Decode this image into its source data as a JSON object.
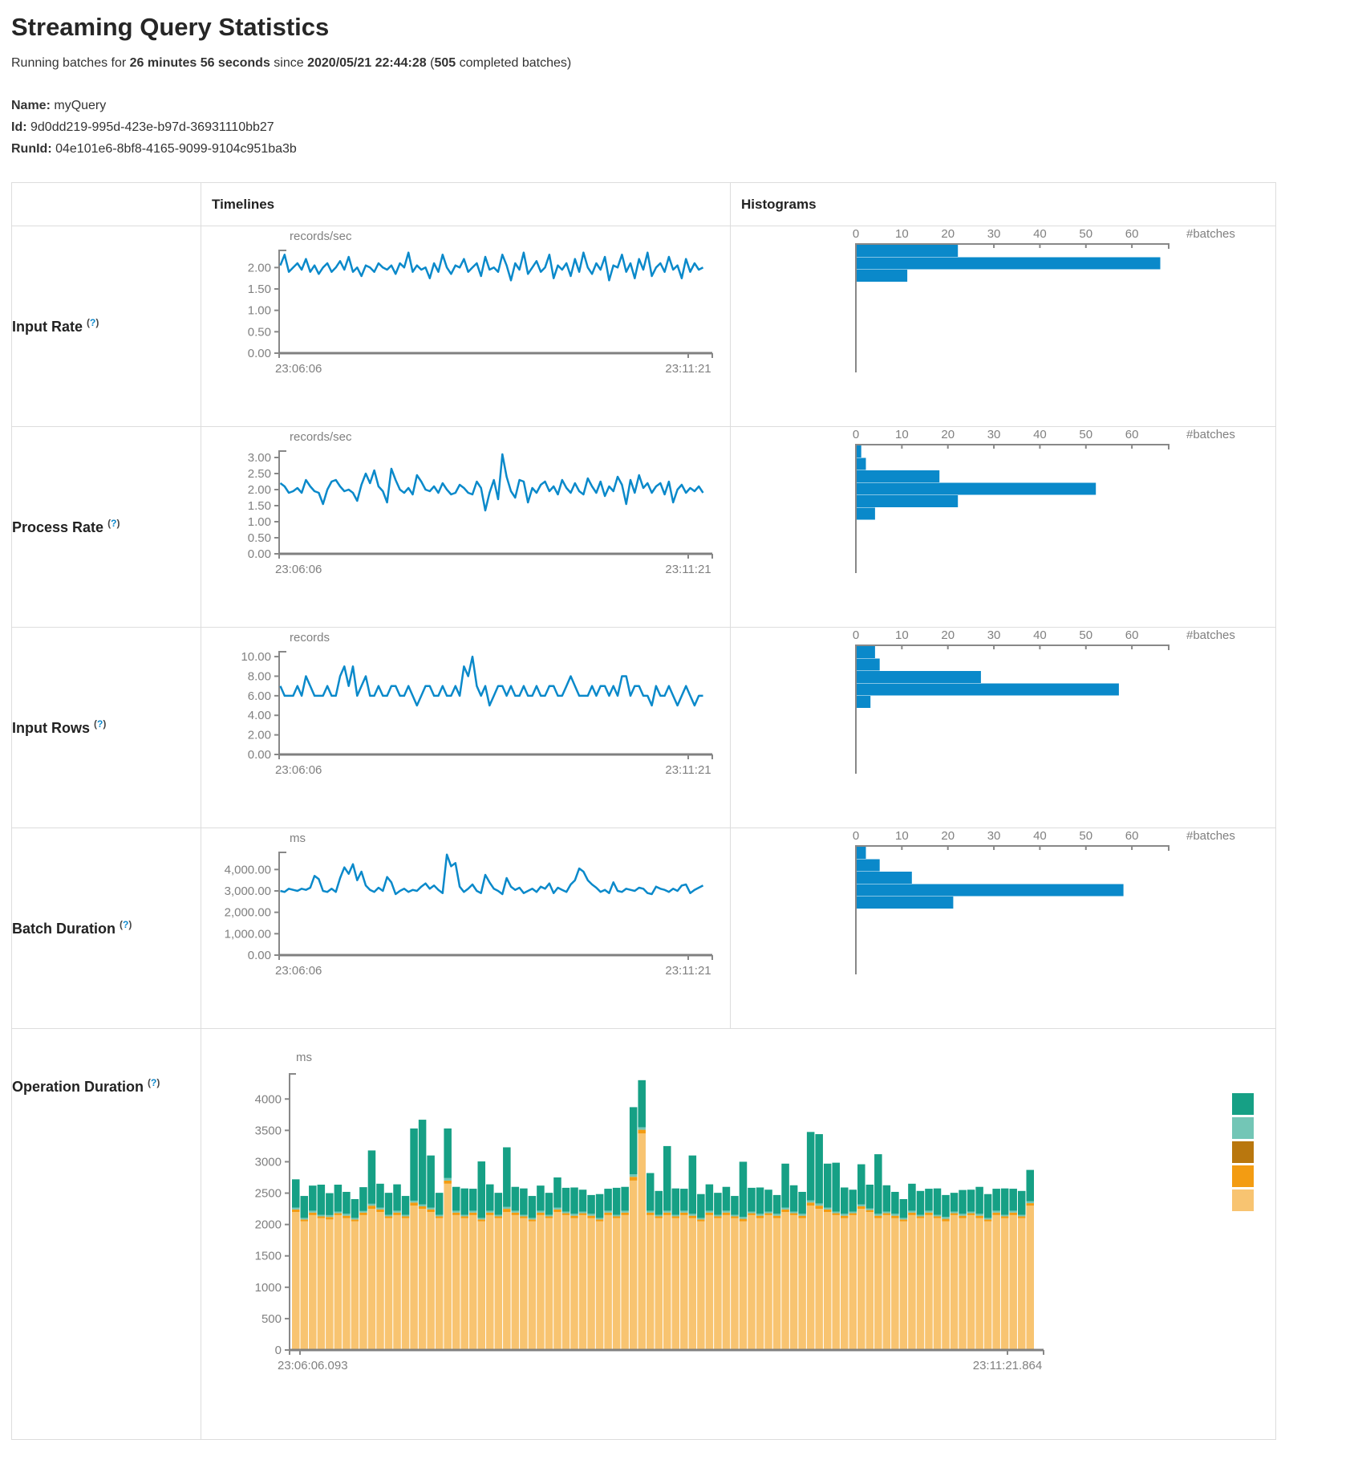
{
  "title": "Streaming Query Statistics",
  "subtitle": {
    "t1": "Running batches for ",
    "duration": "26 minutes 56 seconds",
    "t2": " since ",
    "start_time": "2020/05/21 22:44:28",
    "t3": " (",
    "batches": "505",
    "t4": " completed batches)"
  },
  "meta": {
    "name_label": "Name:",
    "name": "myQuery",
    "id_label": "Id:",
    "id": "9d0dd219-995d-423e-b97d-36931110bb27",
    "runid_label": "RunId:",
    "runid": "04e101e6-8bf8-4165-9099-9104c951ba3b"
  },
  "table": {
    "timelines_header": "Timelines",
    "histograms_header": "Histograms"
  },
  "help": {
    "open": "(",
    "q": "?",
    "close": ")"
  },
  "colors": {
    "accent_blue": "#0A89CA",
    "axis_gray": "#888888"
  },
  "hist_axis": {
    "ticks": [
      0,
      10,
      20,
      30,
      40,
      50,
      60
    ],
    "max": 68,
    "label": "#batches"
  },
  "rows": [
    {
      "label": "Input Rate",
      "unit": "records/sec",
      "x_start": "23:06:06",
      "x_end": "23:11:21",
      "y_ticks": [
        "0.00",
        "0.50",
        "1.00",
        "1.50",
        "2.00"
      ],
      "y_tick_values": [
        0,
        0.5,
        1,
        1.5,
        2
      ],
      "y_max": 2.4,
      "timeline": [
        2.05,
        2.3,
        1.9,
        2.0,
        2.1,
        1.95,
        2.2,
        1.9,
        2.05,
        1.85,
        2.0,
        2.1,
        1.9,
        2.0,
        2.15,
        1.95,
        2.25,
        1.9,
        2.0,
        1.8,
        2.05,
        2.0,
        1.9,
        2.1,
        2.0,
        1.95,
        2.05,
        1.85,
        2.1,
        2.0,
        2.35,
        1.9,
        2.05,
        1.95,
        2.0,
        1.75,
        2.1,
        1.9,
        2.3,
        2.0,
        1.85,
        2.05,
        2.0,
        2.2,
        1.9,
        2.0,
        2.1,
        1.8,
        2.25,
        1.95,
        2.0,
        1.9,
        2.3,
        2.05,
        1.7,
        2.1,
        1.95,
        2.35,
        1.85,
        2.0,
        2.15,
        1.9,
        2.0,
        2.3,
        1.75,
        2.05,
        1.95,
        2.1,
        1.8,
        2.2,
        1.9,
        2.35,
        2.0,
        1.85,
        2.1,
        1.95,
        2.25,
        1.7,
        2.05,
        2.0,
        2.3,
        1.9,
        2.1,
        1.75,
        2.2,
        1.95,
        2.35,
        1.8,
        2.0,
        2.1,
        1.9,
        2.25,
        1.95,
        2.05,
        1.75,
        2.2,
        1.9,
        2.1,
        1.95,
        2.0
      ],
      "histogram": [
        22,
        66,
        11
      ]
    },
    {
      "label": "Process Rate",
      "unit": "records/sec",
      "x_start": "23:06:06",
      "x_end": "23:11:21",
      "y_ticks": [
        "0.00",
        "0.50",
        "1.00",
        "1.50",
        "2.00",
        "2.50",
        "3.00"
      ],
      "y_tick_values": [
        0,
        0.5,
        1,
        1.5,
        2,
        2.5,
        3
      ],
      "y_max": 3.2,
      "timeline": [
        2.2,
        2.1,
        1.9,
        1.95,
        2.05,
        1.9,
        2.3,
        2.1,
        1.95,
        1.9,
        1.55,
        2.0,
        2.25,
        2.3,
        2.1,
        1.95,
        2.0,
        1.9,
        1.65,
        2.15,
        2.5,
        2.2,
        2.6,
        2.1,
        1.95,
        1.6,
        2.65,
        2.3,
        2.0,
        1.9,
        2.05,
        1.85,
        2.45,
        2.25,
        2.0,
        1.95,
        2.1,
        1.9,
        2.2,
        2.0,
        1.85,
        1.9,
        2.15,
        2.05,
        1.9,
        1.85,
        2.25,
        2.05,
        1.35,
        1.9,
        2.3,
        1.7,
        3.1,
        2.4,
        1.95,
        1.75,
        2.3,
        2.25,
        1.6,
        2.05,
        1.9,
        2.15,
        2.25,
        1.95,
        2.1,
        1.85,
        2.3,
        2.05,
        1.9,
        2.2,
        1.95,
        1.85,
        2.35,
        2.1,
        1.9,
        2.25,
        1.8,
        2.1,
        1.95,
        2.4,
        2.15,
        1.55,
        2.3,
        1.9,
        2.45,
        2.05,
        2.2,
        1.9,
        2.1,
        2.2,
        1.85,
        2.25,
        1.6,
        2.0,
        2.15,
        1.9,
        2.05,
        1.95,
        2.1,
        1.9
      ],
      "histogram": [
        1,
        2,
        18,
        52,
        22,
        4
      ]
    },
    {
      "label": "Input Rows",
      "unit": "records",
      "x_start": "23:06:06",
      "x_end": "23:11:21",
      "y_ticks": [
        "0.00",
        "2.00",
        "4.00",
        "6.00",
        "8.00",
        "10.00"
      ],
      "y_tick_values": [
        0,
        2,
        4,
        6,
        8,
        10
      ],
      "y_max": 10.5,
      "timeline": [
        7,
        6,
        6,
        6,
        7,
        6,
        8,
        7,
        6,
        6,
        6,
        7,
        6,
        6,
        8,
        9,
        7,
        9,
        6,
        7,
        8,
        6,
        6,
        7,
        6,
        6,
        7,
        7,
        6,
        6,
        7,
        6,
        5,
        6,
        7,
        7,
        6,
        6,
        7,
        6,
        6,
        7,
        6,
        9,
        8,
        10,
        7,
        6,
        7,
        5,
        6,
        7,
        7,
        6,
        7,
        6,
        6,
        7,
        6,
        6,
        7,
        6,
        6,
        7,
        7,
        6,
        6,
        7,
        8,
        7,
        6,
        6,
        6,
        7,
        6,
        7,
        7,
        6,
        7,
        6,
        8,
        8,
        6,
        7,
        7,
        6,
        6,
        5,
        7,
        6,
        6,
        7,
        6,
        5,
        6,
        7,
        6,
        5,
        6,
        6
      ],
      "histogram": [
        4,
        5,
        27,
        57,
        3
      ]
    },
    {
      "label": "Batch Duration",
      "unit": "ms",
      "x_start": "23:06:06",
      "x_end": "23:11:21",
      "y_ticks": [
        "0.00",
        "1,000.00",
        "2,000.00",
        "3,000.00",
        "4,000.00"
      ],
      "y_tick_values": [
        0,
        1000,
        2000,
        3000,
        4000
      ],
      "y_max": 4800,
      "timeline": [
        3000,
        2950,
        3100,
        3050,
        3000,
        3100,
        3050,
        3150,
        3700,
        3550,
        3000,
        2950,
        3100,
        2950,
        3600,
        4100,
        3800,
        4250,
        3500,
        3900,
        3250,
        3050,
        2950,
        3150,
        3000,
        3650,
        3400,
        2850,
        3000,
        3100,
        2950,
        3050,
        3000,
        3200,
        3350,
        3100,
        3250,
        3050,
        2900,
        4700,
        4150,
        4300,
        3200,
        2950,
        3100,
        3300,
        3000,
        2900,
        3750,
        3400,
        3100,
        3000,
        2850,
        3600,
        3200,
        3050,
        3150,
        2900,
        3000,
        3100,
        2950,
        3200,
        3100,
        3350,
        2900,
        3150,
        3050,
        2950,
        3300,
        3500,
        4050,
        3900,
        3500,
        3300,
        3150,
        2950,
        3050,
        2900,
        3400,
        3000,
        2950,
        3100,
        3050,
        3000,
        3150,
        3100,
        2900,
        2850,
        3200,
        3100,
        3050,
        2950,
        3100,
        3000,
        3250,
        3300,
        2900,
        3050,
        3150,
        3250
      ],
      "histogram": [
        2,
        5,
        12,
        58,
        21
      ]
    }
  ],
  "operation": {
    "label": "Operation Duration",
    "unit": "ms",
    "x_start": "23:06:06.093",
    "x_end": "23:11:21.864",
    "y_ticks": [
      "0",
      "500",
      "1000",
      "1500",
      "2000",
      "2500",
      "3000",
      "3500",
      "4000"
    ],
    "y_tick_values": [
      0,
      500,
      1000,
      1500,
      2000,
      2500,
      3000,
      3500,
      4000
    ],
    "y_max": 4400,
    "stack_colors": [
      "#F8C471",
      "#F39C12",
      "#73C6B6",
      "#16A085"
    ],
    "legend_colors": [
      "#16A085",
      "#73C6B6",
      "#B9770E",
      "#F39C12",
      "#F8C471"
    ],
    "bars": [
      [
        2200,
        40,
        30,
        450
      ],
      [
        2050,
        30,
        25,
        350
      ],
      [
        2150,
        40,
        30,
        400
      ],
      [
        2100,
        30,
        25,
        480
      ],
      [
        2080,
        40,
        30,
        350
      ],
      [
        2150,
        30,
        25,
        430
      ],
      [
        2100,
        40,
        30,
        350
      ],
      [
        2050,
        30,
        25,
        300
      ],
      [
        2150,
        40,
        25,
        380
      ],
      [
        2250,
        50,
        30,
        850
      ],
      [
        2200,
        40,
        30,
        380
      ],
      [
        2100,
        30,
        25,
        350
      ],
      [
        2150,
        40,
        30,
        420
      ],
      [
        2100,
        30,
        25,
        300
      ],
      [
        2300,
        50,
        30,
        1150
      ],
      [
        2250,
        40,
        30,
        1350
      ],
      [
        2200,
        40,
        30,
        830
      ],
      [
        2100,
        30,
        25,
        350
      ],
      [
        2650,
        50,
        40,
        790
      ],
      [
        2150,
        40,
        30,
        380
      ],
      [
        2100,
        30,
        25,
        420
      ],
      [
        2150,
        40,
        30,
        350
      ],
      [
        2050,
        30,
        25,
        900
      ],
      [
        2150,
        40,
        30,
        420
      ],
      [
        2100,
        30,
        25,
        350
      ],
      [
        2200,
        50,
        30,
        950
      ],
      [
        2150,
        40,
        30,
        380
      ],
      [
        2100,
        30,
        25,
        420
      ],
      [
        2050,
        30,
        25,
        350
      ],
      [
        2150,
        40,
        30,
        400
      ],
      [
        2100,
        30,
        25,
        350
      ],
      [
        2200,
        40,
        30,
        480
      ],
      [
        2150,
        30,
        25,
        380
      ],
      [
        2100,
        40,
        30,
        420
      ],
      [
        2150,
        30,
        25,
        350
      ],
      [
        2100,
        40,
        30,
        300
      ],
      [
        2050,
        30,
        25,
        380
      ],
      [
        2150,
        40,
        30,
        350
      ],
      [
        2100,
        30,
        25,
        430
      ],
      [
        2150,
        40,
        30,
        380
      ],
      [
        2700,
        60,
        40,
        1070
      ],
      [
        3450,
        60,
        40,
        750
      ],
      [
        2150,
        40,
        30,
        600
      ],
      [
        2100,
        30,
        25,
        380
      ],
      [
        2150,
        40,
        30,
        1030
      ],
      [
        2100,
        30,
        25,
        420
      ],
      [
        2150,
        40,
        30,
        350
      ],
      [
        2100,
        40,
        30,
        930
      ],
      [
        2050,
        30,
        25,
        380
      ],
      [
        2150,
        40,
        30,
        420
      ],
      [
        2100,
        30,
        25,
        350
      ],
      [
        2150,
        40,
        30,
        380
      ],
      [
        2100,
        30,
        25,
        300
      ],
      [
        2050,
        40,
        30,
        880
      ],
      [
        2150,
        30,
        25,
        380
      ],
      [
        2100,
        40,
        30,
        420
      ],
      [
        2150,
        30,
        25,
        350
      ],
      [
        2100,
        40,
        30,
        300
      ],
      [
        2200,
        40,
        30,
        700
      ],
      [
        2150,
        30,
        25,
        420
      ],
      [
        2100,
        40,
        30,
        350
      ],
      [
        2300,
        50,
        35,
        1090
      ],
      [
        2250,
        50,
        35,
        1105
      ],
      [
        2200,
        40,
        30,
        700
      ],
      [
        2150,
        30,
        25,
        780
      ],
      [
        2100,
        40,
        30,
        420
      ],
      [
        2150,
        30,
        25,
        350
      ],
      [
        2250,
        40,
        30,
        640
      ],
      [
        2200,
        30,
        25,
        380
      ],
      [
        2100,
        40,
        30,
        950
      ],
      [
        2150,
        30,
        25,
        420
      ],
      [
        2100,
        40,
        30,
        350
      ],
      [
        2050,
        30,
        25,
        300
      ],
      [
        2150,
        40,
        30,
        430
      ],
      [
        2100,
        30,
        25,
        380
      ],
      [
        2150,
        40,
        30,
        350
      ],
      [
        2100,
        30,
        25,
        420
      ],
      [
        2050,
        40,
        30,
        350
      ],
      [
        2150,
        30,
        25,
        300
      ],
      [
        2100,
        40,
        30,
        380
      ],
      [
        2150,
        30,
        25,
        350
      ],
      [
        2100,
        40,
        30,
        430
      ],
      [
        2050,
        30,
        25,
        380
      ],
      [
        2150,
        40,
        30,
        350
      ],
      [
        2100,
        30,
        25,
        420
      ],
      [
        2150,
        40,
        30,
        350
      ],
      [
        2100,
        30,
        25,
        380
      ],
      [
        2300,
        40,
        30,
        500
      ]
    ]
  }
}
